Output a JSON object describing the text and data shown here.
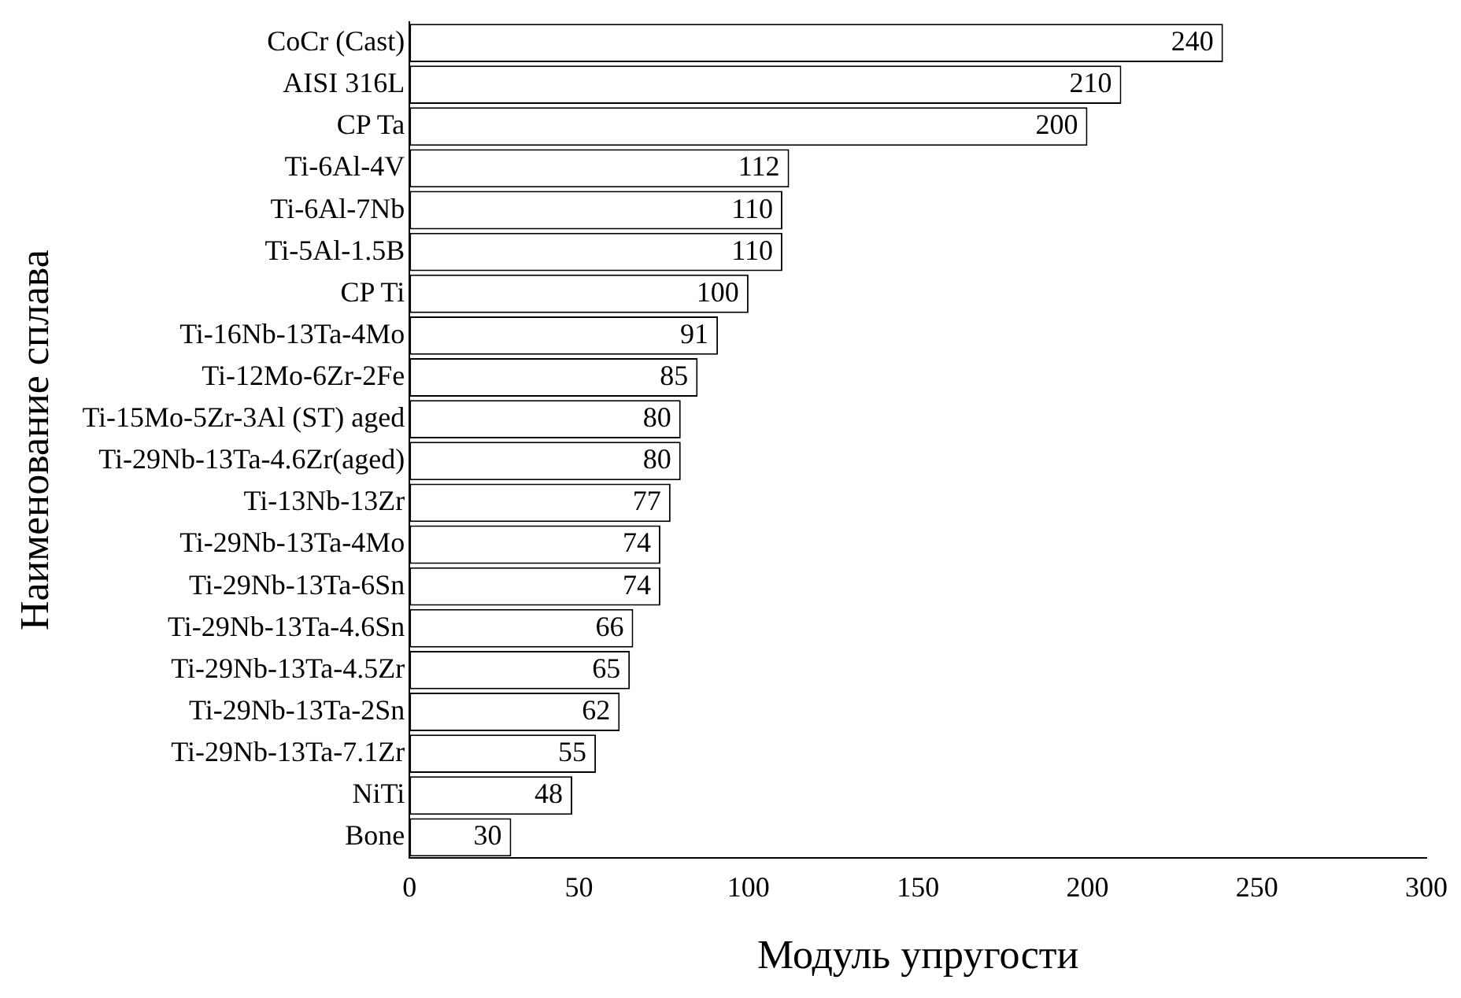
{
  "chart_data": {
    "type": "bar",
    "orientation": "horizontal",
    "xlabel": "Модуль упругости",
    "ylabel": "Наименование сплава",
    "categories": [
      "CoCr (Cast)",
      "AISI 316L",
      "CP Ta",
      "Ti-6Al-4V",
      "Ti-6Al-7Nb",
      "Ti-5Al-1.5B",
      "CP Ti",
      "Ti-16Nb-13Ta-4Mo",
      "Ti-12Mo-6Zr-2Fe",
      "Ti-15Mo-5Zr-3Al (ST) aged",
      "Ti-29Nb-13Ta-4.6Zr(aged)",
      "Ti-13Nb-13Zr",
      "Ti-29Nb-13Ta-4Mo",
      "Ti-29Nb-13Ta-6Sn",
      "Ti-29Nb-13Ta-4.6Sn",
      "Ti-29Nb-13Ta-4.5Zr",
      "Ti-29Nb-13Ta-2Sn",
      "Ti-29Nb-13Ta-7.1Zr",
      "NiTi",
      "Bone"
    ],
    "values": [
      240,
      210,
      200,
      112,
      110,
      110,
      100,
      91,
      85,
      80,
      80,
      77,
      74,
      74,
      66,
      65,
      62,
      55,
      48,
      30
    ],
    "color": "#ffffff",
    "data_labels": true,
    "xlim": [
      0,
      300
    ],
    "xticks": [
      0,
      50,
      100,
      150,
      200,
      250,
      300
    ],
    "grid": false,
    "legend": false
  }
}
